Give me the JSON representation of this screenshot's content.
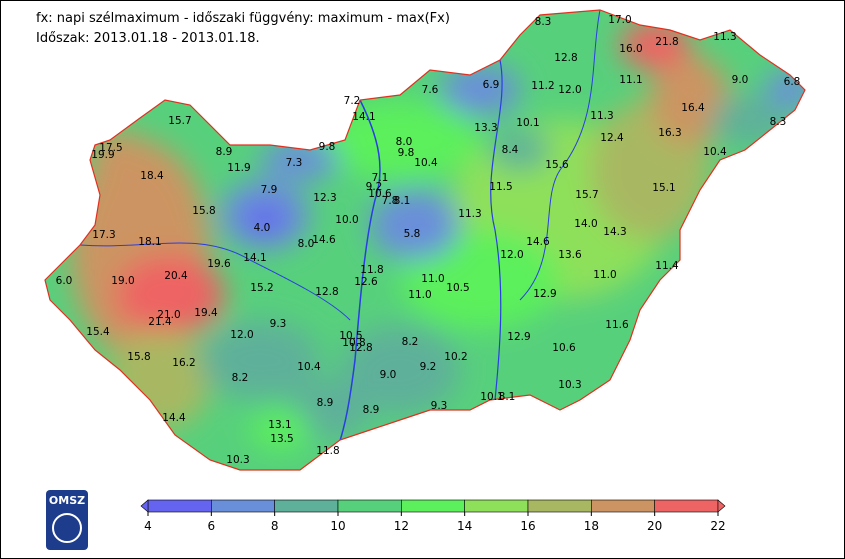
{
  "header": {
    "title": "fx: napi szélmaximum - időszaki függvény: maximum - max(Fx)",
    "period": "Időszak: 2013.01.18 - 2013.01.18."
  },
  "logo": "OMSZ",
  "colorbar": {
    "ticks": [
      4,
      6,
      8,
      10,
      12,
      14,
      16,
      18,
      20,
      22
    ],
    "colors": [
      "#6464f0",
      "#6a8fda",
      "#5fb09a",
      "#57d07c",
      "#5cf05c",
      "#8ee05a",
      "#a8b862",
      "#cc9462",
      "#ee6464"
    ]
  },
  "stations": [
    "8.3",
    "17.0",
    "21.8",
    "11.3",
    "16.0",
    "12.8",
    "11.2",
    "12.0",
    "11.1",
    "9.0",
    "6.8",
    "6.9",
    "7.6",
    "7.2",
    "14.1",
    "15.7",
    "17.5",
    "19.9",
    "8.9",
    "9.8",
    "8.0",
    "9.8",
    "10.4",
    "13.3",
    "10.1",
    "11.3",
    "16.4",
    "8.3",
    "16.3",
    "12.4",
    "8.4",
    "15.6",
    "10.4",
    "11.9",
    "7.3",
    "7.1",
    "9.2",
    "10.6",
    "7.8",
    "8.1",
    "18.4",
    "7.9",
    "12.3",
    "11.5",
    "15.7",
    "15.1",
    "15.8",
    "17.3",
    "4.0",
    "10.0",
    "11.3",
    "5.8",
    "14.0",
    "14.3",
    "18.1",
    "8.0",
    "14.6",
    "14.6",
    "12.0",
    "13.6",
    "14.1",
    "19.6",
    "11.8",
    "20.4",
    "6.0",
    "19.0",
    "12.6",
    "11.0",
    "11.0",
    "11.4",
    "15.2",
    "12.8",
    "11.0",
    "10.5",
    "12.9",
    "21.0",
    "19.4",
    "21.4",
    "15.4",
    "12.0",
    "9.3",
    "11.6",
    "10.5",
    "12.9",
    "10.8",
    "12.8",
    "8.2",
    "15.8",
    "16.2",
    "10.6",
    "10.2",
    "10.4",
    "9.0",
    "9.2",
    "8.2",
    "10.3",
    "8.9",
    "8.9",
    "9.3",
    "10.1",
    "8.1",
    "14.4",
    "13.1",
    "13.5",
    "11.8",
    "10.3"
  ]
}
